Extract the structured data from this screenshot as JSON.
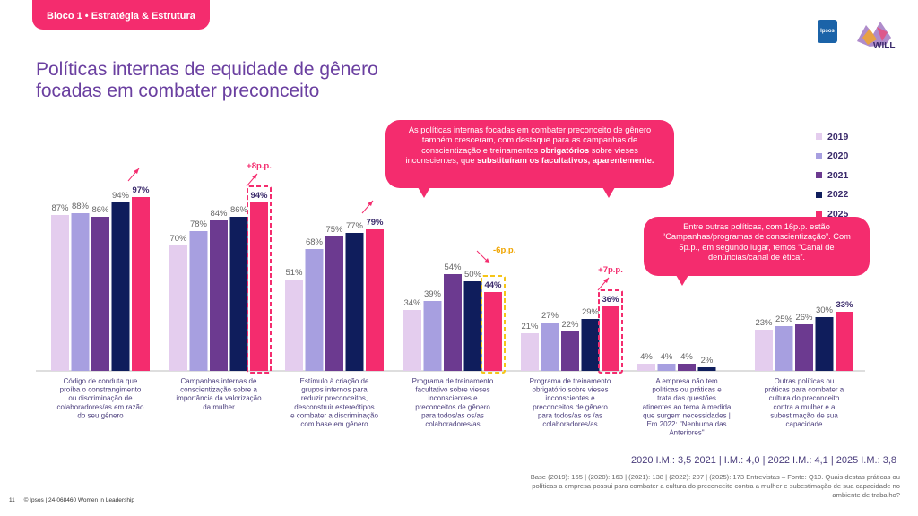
{
  "header": {
    "section_tag": "Bloco 1 • Estratégia & Estrutura",
    "ipsos_logo": "Ipsos",
    "will_logo": "WILL"
  },
  "title": {
    "line1": "Políticas internas de equidade de gênero",
    "line2": "focadas em combater preconceito"
  },
  "callouts": {
    "first": {
      "part1": "As políticas internas focadas em combater preconceito de gênero também cresceram, com destaque para as campanhas de conscientização e treinamentos ",
      "bold1": "obrigatórios",
      "part2": " sobre vieses inconscientes, que ",
      "bold2": "substituíram os facultativos, aparentemente."
    },
    "second": "Entre outras políticas, com 16p.p. estão “Campanhas/programas de conscientização”. Com 5p.p., em segundo lugar, temos “Canal de denúncias/canal de ética”."
  },
  "colors": {
    "2019": "#e4cdee",
    "2020": "#a79fe0",
    "2021": "#6c3a90",
    "2022": "#0f1d5c",
    "2025": "#f42c6e",
    "highlight": "#f42c6e",
    "highlight_neg": "#f5c518"
  },
  "chart_data": {
    "type": "bar",
    "ylim": [
      0,
      100
    ],
    "series_names": [
      "2019",
      "2020",
      "2021",
      "2022",
      "2025"
    ],
    "categories": [
      "Código de conduta que proíba o constrangimento ou discriminação de colaboradores/as em razão do seu gênero",
      "Campanhas internas de conscientização sobre a importância da valorização da mulher",
      "Estímulo à criação de grupos internos para reduzir preconceitos, desconstruir estereótipos e combater a discriminação com base em gênero",
      "Programa de treinamento facultativo sobre vieses inconscientes e preconceitos de gênero para todos/as os/as colaboradores/as",
      "Programa de treinamento obrigatório sobre vieses inconscientes e preconceitos de gênero para todos/as os /as colaboradores/as",
      "A empresa não tem políticas ou práticas e trata das questões atinentes ao tema à medida que surgem necessidades | Em 2022: \"Nenhuma das Anteriores\"",
      "Outras políticas ou práticas para combater a cultura do preconceito contra a mulher e a subestimação de sua capacidade"
    ],
    "series": [
      {
        "name": "2019",
        "values": [
          87,
          70,
          51,
          34,
          21,
          4,
          23
        ]
      },
      {
        "name": "2020",
        "values": [
          88,
          78,
          68,
          39,
          27,
          4,
          25
        ]
      },
      {
        "name": "2021",
        "values": [
          86,
          84,
          75,
          54,
          22,
          4,
          26
        ]
      },
      {
        "name": "2022",
        "values": [
          94,
          86,
          77,
          50,
          29,
          2,
          30
        ]
      },
      {
        "name": "2025",
        "values": [
          97,
          94,
          79,
          44,
          36,
          null,
          33
        ]
      }
    ],
    "labels": [
      [
        "87%",
        "88%",
        "86%",
        "94%",
        "97%"
      ],
      [
        "70%",
        "78%",
        "84%",
        "86%",
        "94%"
      ],
      [
        "51%",
        "68%",
        "75%",
        "77%",
        "79%"
      ],
      [
        "34%",
        "39%",
        "54%",
        "50%",
        "44%"
      ],
      [
        "21%",
        "27%",
        "22%",
        "29%",
        "36%"
      ],
      [
        "4%",
        "4%",
        "4%",
        "2%",
        ""
      ],
      [
        "23%",
        "25%",
        "26%",
        "30%",
        "33%"
      ]
    ],
    "annotations": [
      {
        "category": 1,
        "text": "+8p.p.",
        "direction": "up"
      },
      {
        "category": 3,
        "text": "-6p.p.",
        "direction": "down"
      },
      {
        "category": 4,
        "text": "+7p.p.",
        "direction": "up"
      }
    ],
    "trend_arrows": [
      0,
      1,
      2,
      4
    ]
  },
  "indices": "2020 I.M.: 3,5 2021  | I.M.: 4,0  | 2022 I.M.: 4,1  | 2025 I.M.: 3,8",
  "base_note": "Base (2019): 165 | (2020): 163 | (2021): 138 | (2022): 207 | (2025): 173 Entrevistas – Fonte: Q10. Quais destas práticas ou políticas a empresa possui para combater a cultura do preconceito contra a mulher e subestimação de sua capacidade no ambiente de trabalho?",
  "footer": {
    "page": "11",
    "copyright": "© Ipsos | 24-068460 Women in Leadership"
  }
}
